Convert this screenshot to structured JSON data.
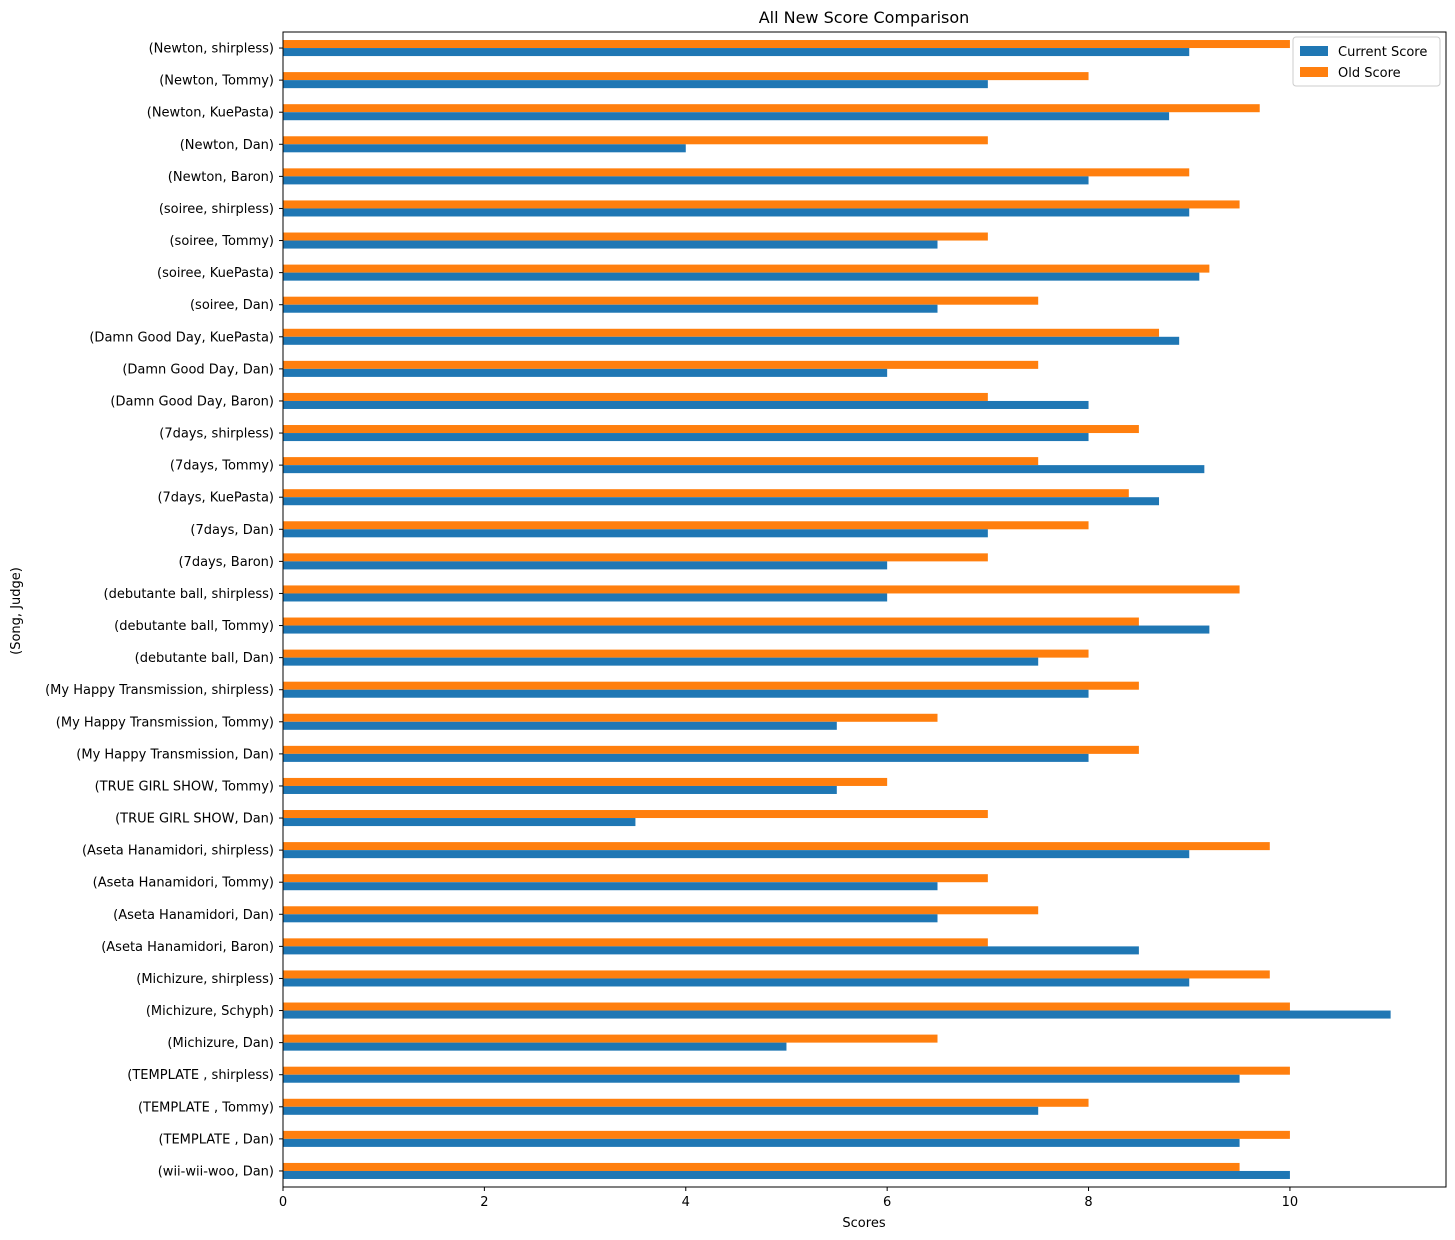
{
  "chart_data": {
    "type": "bar",
    "orientation": "horizontal",
    "title": "All New Score Comparison",
    "xlabel": "Scores",
    "ylabel": "(Song, Judge)",
    "xlim": [
      0,
      11.55
    ],
    "x_ticks": [
      0,
      2,
      4,
      6,
      8,
      10
    ],
    "grid": false,
    "legend_position": "top-right",
    "categories": [
      "(Newton, shirpless)",
      "(Newton, Tommy)",
      "(Newton, KuePasta)",
      "(Newton, Dan)",
      "(Newton, Baron)",
      "(soiree, shirpless)",
      "(soiree, Tommy)",
      "(soiree, KuePasta)",
      "(soiree, Dan)",
      "(Damn Good Day, KuePasta)",
      "(Damn Good Day, Dan)",
      "(Damn Good Day, Baron)",
      "(7days, shirpless)",
      "(7days, Tommy)",
      "(7days, KuePasta)",
      "(7days, Dan)",
      "(7days, Baron)",
      "(debutante ball, shirpless)",
      "(debutante ball, Tommy)",
      "(debutante ball, Dan)",
      "(My Happy Transmission, shirpless)",
      "(My Happy Transmission, Tommy)",
      "(My Happy Transmission, Dan)",
      "(TRUE GIRL SHOW, Tommy)",
      "(TRUE GIRL SHOW, Dan)",
      "(Aseta Hanamidori, shirpless)",
      "(Aseta Hanamidori, Tommy)",
      "(Aseta Hanamidori, Dan)",
      "(Aseta Hanamidori, Baron)",
      "(Michizure, shirpless)",
      "(Michizure, Schyph)",
      "(Michizure, Dan)",
      "(TEMPLATE , shirpless)",
      "(TEMPLATE , Tommy)",
      "(TEMPLATE , Dan)",
      "(wii-wii-woo, Dan)"
    ],
    "series": [
      {
        "name": "Current Score",
        "color": "#1f77b4",
        "values": [
          9,
          7,
          8.8,
          4,
          8,
          9,
          6.5,
          9.1,
          6.5,
          8.9,
          6,
          8,
          8,
          9.15,
          8.7,
          7,
          6,
          6,
          9.2,
          7.5,
          8,
          5.5,
          8,
          5.5,
          3.5,
          9,
          6.5,
          6.5,
          8.5,
          9,
          11,
          5,
          9.5,
          7.5,
          9.5,
          10
        ]
      },
      {
        "name": "Old Score",
        "color": "#ff7f0e",
        "values": [
          10,
          8,
          9.7,
          7,
          9,
          9.5,
          7,
          9.2,
          7.5,
          8.7,
          7.5,
          7,
          8.5,
          7.5,
          8.4,
          8,
          7,
          9.5,
          8.5,
          8,
          8.5,
          6.5,
          8.5,
          6,
          7,
          9.8,
          7,
          7.5,
          7,
          9.8,
          10,
          6.5,
          10,
          8,
          10,
          9.5
        ]
      }
    ]
  }
}
